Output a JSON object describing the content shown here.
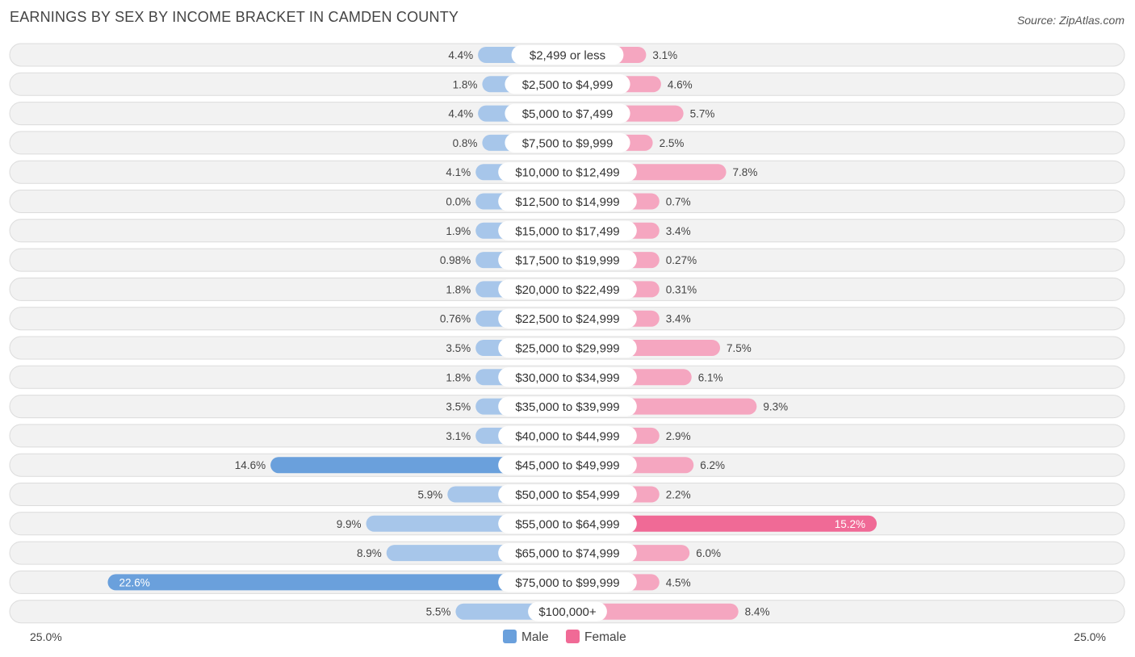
{
  "title": "EARNINGS BY SEX BY INCOME BRACKET IN CAMDEN COUNTY",
  "source": "Source: ZipAtlas.com",
  "colors": {
    "male": "#6aa0dc",
    "male_light": "#a7c6ea",
    "female": "#f06a96",
    "female_light": "#f5a6c0"
  },
  "chart_data": {
    "type": "bar",
    "orientation": "horizontal-diverging",
    "title": "EARNINGS BY SEX BY INCOME BRACKET IN CAMDEN COUNTY",
    "categories": [
      "$2,499 or less",
      "$2,500 to $4,999",
      "$5,000 to $7,499",
      "$7,500 to $9,999",
      "$10,000 to $12,499",
      "$12,500 to $14,999",
      "$15,000 to $17,499",
      "$17,500 to $19,999",
      "$20,000 to $22,499",
      "$22,500 to $24,999",
      "$25,000 to $29,999",
      "$30,000 to $34,999",
      "$35,000 to $39,999",
      "$40,000 to $44,999",
      "$45,000 to $49,999",
      "$50,000 to $54,999",
      "$55,000 to $64,999",
      "$65,000 to $74,999",
      "$75,000 to $99,999",
      "$100,000+"
    ],
    "series": [
      {
        "name": "Male",
        "values": [
          4.4,
          1.8,
          4.4,
          0.8,
          4.1,
          0.0,
          1.9,
          0.98,
          1.8,
          0.76,
          3.5,
          1.8,
          3.5,
          3.1,
          14.6,
          5.9,
          9.9,
          8.9,
          22.6,
          5.5
        ],
        "labels": [
          "4.4%",
          "1.8%",
          "4.4%",
          "0.8%",
          "4.1%",
          "0.0%",
          "1.9%",
          "0.98%",
          "1.8%",
          "0.76%",
          "3.5%",
          "1.8%",
          "3.5%",
          "3.1%",
          "14.6%",
          "5.9%",
          "9.9%",
          "8.9%",
          "22.6%",
          "5.5%"
        ]
      },
      {
        "name": "Female",
        "values": [
          3.1,
          4.6,
          5.7,
          2.5,
          7.8,
          0.7,
          3.4,
          0.27,
          0.31,
          3.4,
          7.5,
          6.1,
          9.3,
          2.9,
          6.2,
          2.2,
          15.2,
          6.0,
          4.5,
          8.4
        ],
        "labels": [
          "3.1%",
          "4.6%",
          "5.7%",
          "2.5%",
          "7.8%",
          "0.7%",
          "3.4%",
          "0.27%",
          "0.31%",
          "3.4%",
          "7.5%",
          "6.1%",
          "9.3%",
          "2.9%",
          "6.2%",
          "2.2%",
          "15.2%",
          "6.0%",
          "4.5%",
          "8.4%"
        ]
      }
    ],
    "xlim": [
      -25,
      25
    ],
    "axis_labels": {
      "left": "25.0%",
      "right": "25.0%"
    },
    "legend": [
      "Male",
      "Female"
    ],
    "legend_position": "bottom-center"
  }
}
